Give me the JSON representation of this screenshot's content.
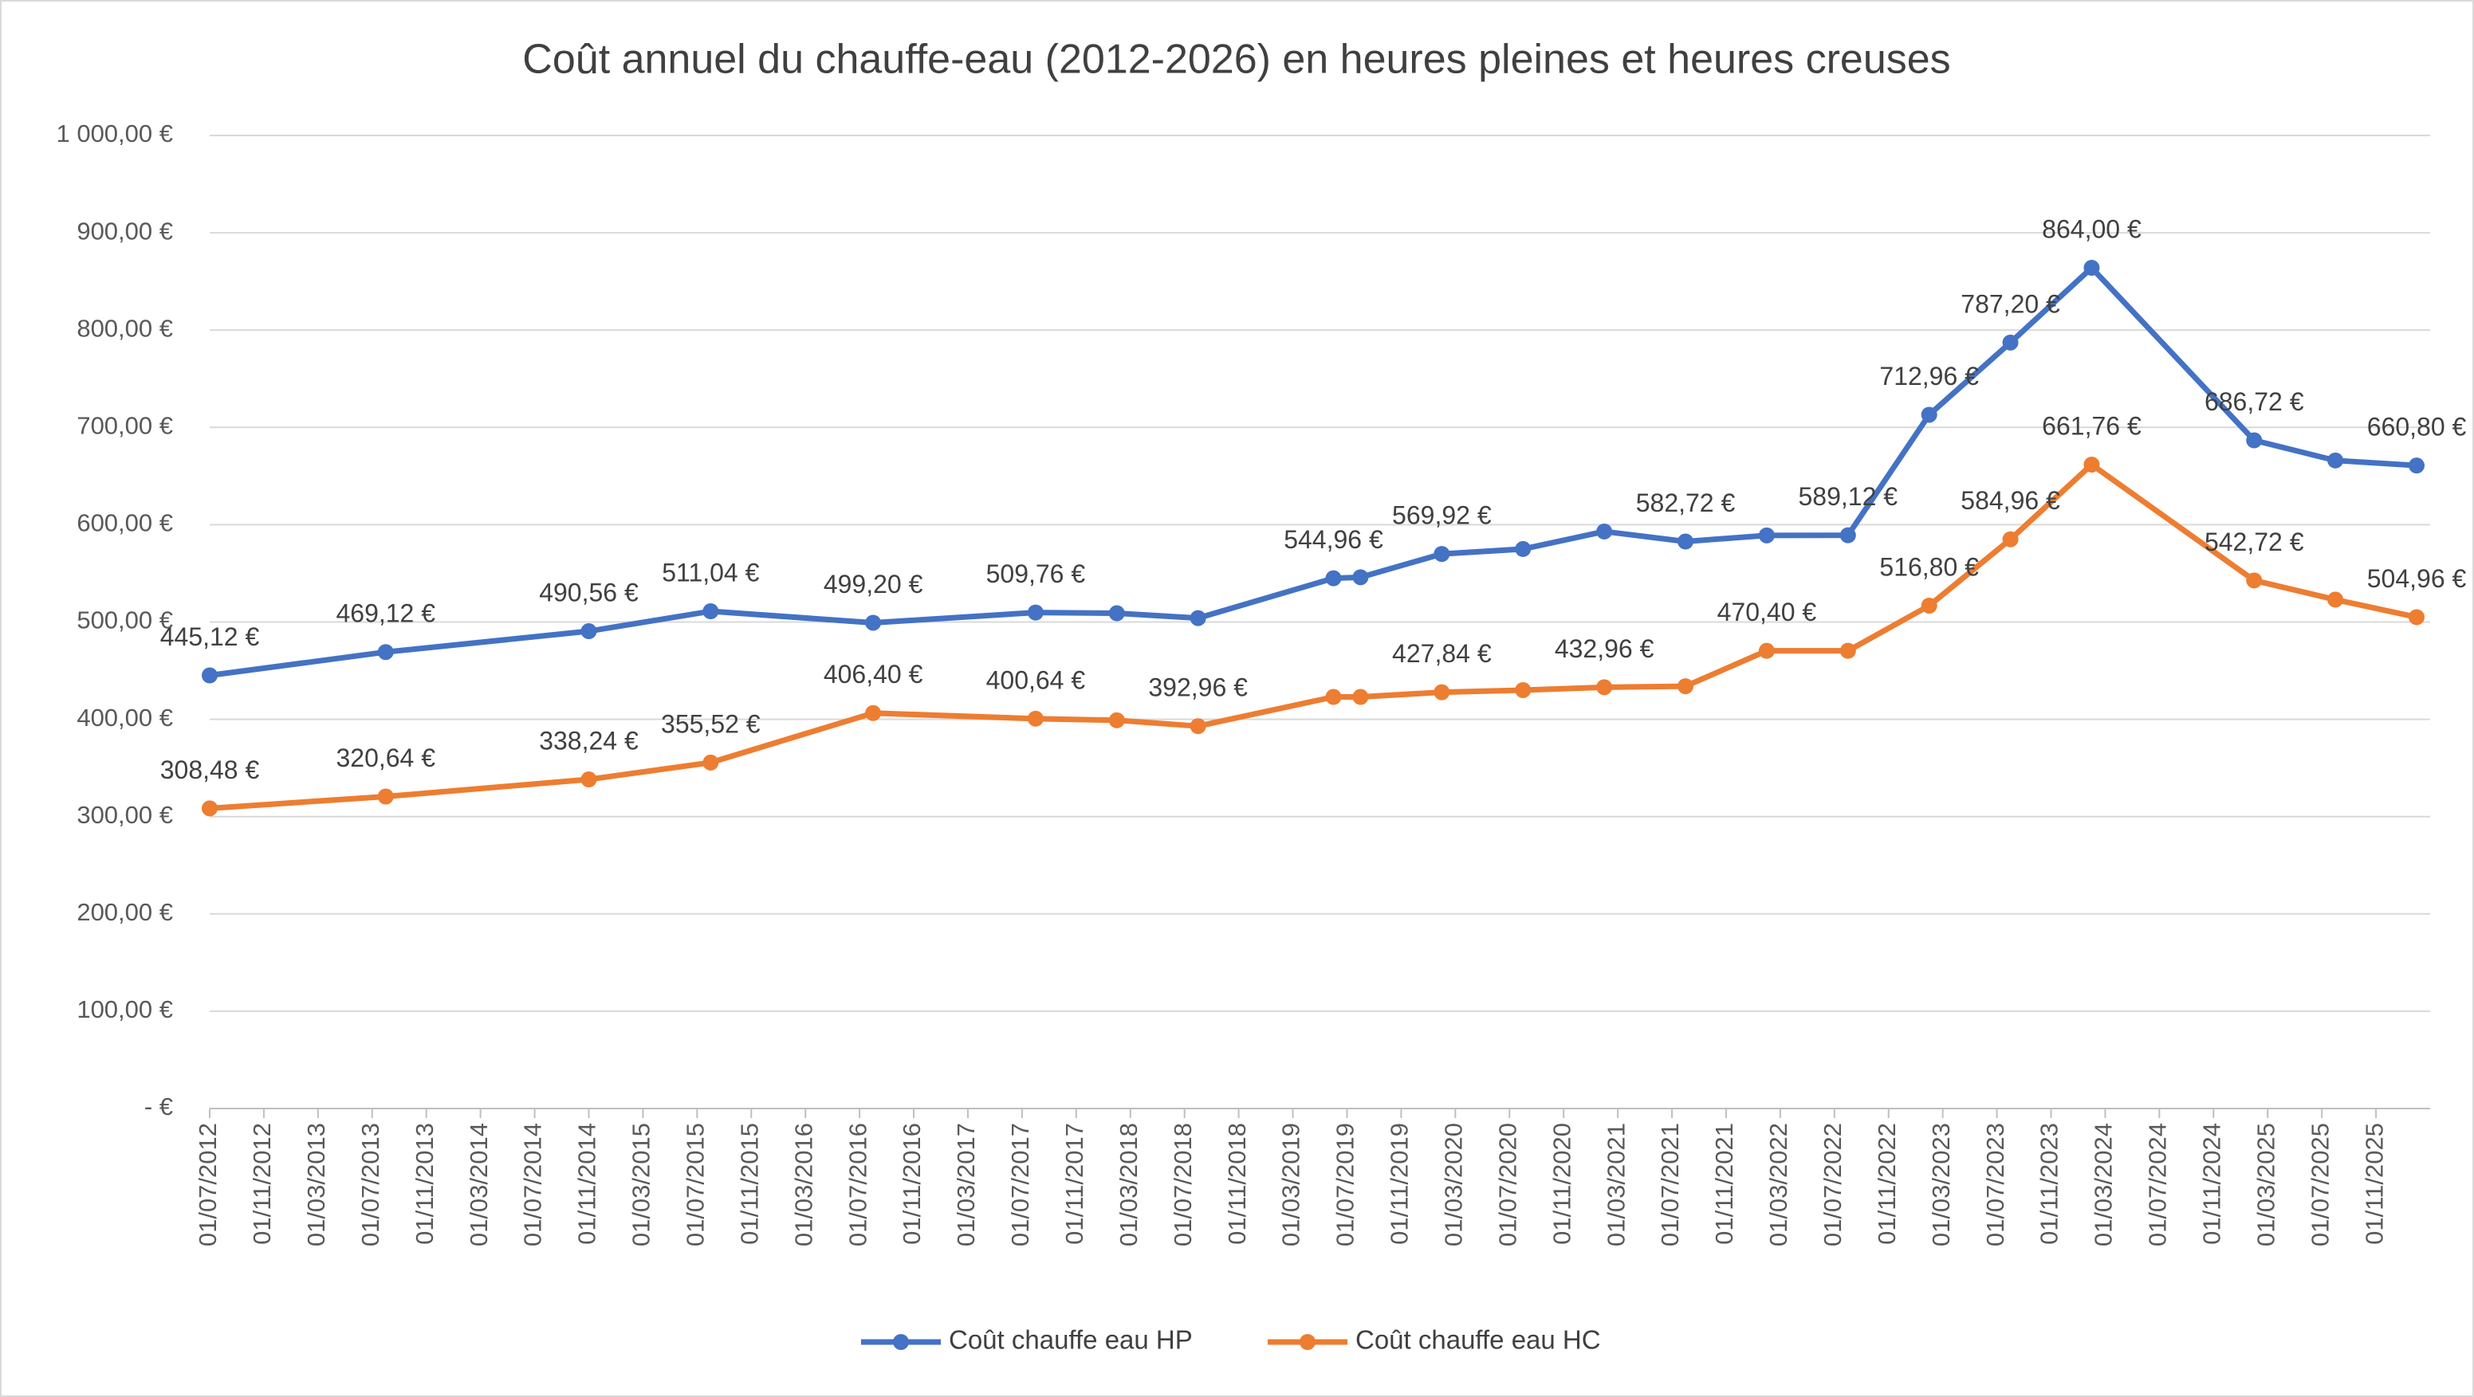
{
  "chart_data": {
    "type": "line",
    "title": "Coût annuel du chauffe-eau (2012-2026)  en heures pleines et heures creuses",
    "x": [
      "01/07/2012",
      "01/08/2013",
      "01/11/2014",
      "01/08/2015",
      "01/08/2016",
      "01/08/2017",
      "01/02/2018",
      "01/08/2018",
      "01/06/2019",
      "01/08/2019",
      "01/02/2020",
      "01/08/2020",
      "01/02/2021",
      "01/08/2021",
      "01/02/2022",
      "01/08/2022",
      "01/02/2023",
      "01/08/2023",
      "01/02/2024",
      "01/02/2025",
      "01/08/2025",
      "01/02/2026"
    ],
    "series": [
      {
        "name": "Coût chauffe eau HP",
        "color": "#4472c4",
        "values": [
          445.12,
          469.12,
          490.56,
          511.04,
          499.2,
          509.76,
          509,
          504,
          544.96,
          546,
          569.92,
          575,
          593,
          582.72,
          589,
          589.12,
          712.96,
          787.2,
          864.0,
          686.72,
          666,
          660.8
        ],
        "value_labels": [
          "445,12 €",
          "469,12 €",
          "490,56 €",
          "511,04 €",
          "499,20 €",
          "509,76 €",
          null,
          null,
          "544,96 €",
          null,
          "569,92 €",
          null,
          null,
          "582,72 €",
          null,
          "589,12 €",
          "712,96 €",
          "787,20 €",
          "864,00 €",
          "686,72 €",
          null,
          "660,80 €"
        ]
      },
      {
        "name": "Coût chauffe eau HC",
        "color": "#ed7d31",
        "values": [
          308.48,
          320.64,
          338.24,
          355.52,
          406.4,
          400.64,
          399,
          392.96,
          423,
          423,
          427.84,
          430,
          432.96,
          434,
          470.4,
          470.4,
          516.8,
          584.96,
          661.76,
          542.72,
          523,
          504.96
        ],
        "value_labels": [
          "308,48 €",
          "320,64 €",
          "338,24 €",
          "355,52 €",
          "406,40 €",
          "400,64 €",
          null,
          "392,96 €",
          null,
          null,
          "427,84 €",
          null,
          "432,96 €",
          null,
          "470,40 €",
          null,
          "516,80 €",
          "584,96 €",
          "661,76 €",
          "542,72 €",
          null,
          "504,96 €"
        ]
      }
    ],
    "xlim": [
      "01/07/2012",
      "01/03/2026"
    ],
    "xticks": [
      "01/07/2012",
      "01/11/2012",
      "01/03/2013",
      "01/07/2013",
      "01/11/2013",
      "01/03/2014",
      "01/07/2014",
      "01/11/2014",
      "01/03/2015",
      "01/07/2015",
      "01/11/2015",
      "01/03/2016",
      "01/07/2016",
      "01/11/2016",
      "01/03/2017",
      "01/07/2017",
      "01/11/2017",
      "01/03/2018",
      "01/07/2018",
      "01/11/2018",
      "01/03/2019",
      "01/07/2019",
      "01/11/2019",
      "01/03/2020",
      "01/07/2020",
      "01/11/2020",
      "01/03/2021",
      "01/07/2021",
      "01/11/2021",
      "01/03/2022",
      "01/07/2022",
      "01/11/2022",
      "01/03/2023",
      "01/07/2023",
      "01/11/2023",
      "01/03/2024",
      "01/07/2024",
      "01/11/2024",
      "01/03/2025",
      "01/07/2025",
      "01/11/2025"
    ],
    "ylim": [
      0,
      1000
    ],
    "yticks": [
      {
        "value": 0,
        "label": "-   €"
      },
      {
        "value": 100,
        "label": "100,00 €"
      },
      {
        "value": 200,
        "label": "200,00 €"
      },
      {
        "value": 300,
        "label": "300,00 €"
      },
      {
        "value": 400,
        "label": "400,00 €"
      },
      {
        "value": 500,
        "label": "500,00 €"
      },
      {
        "value": 600,
        "label": "600,00 €"
      },
      {
        "value": 700,
        "label": "700,00 €"
      },
      {
        "value": 800,
        "label": "800,00 €"
      },
      {
        "value": 900,
        "label": "900,00 €"
      },
      {
        "value": 1000,
        "label": "1 000,00 €"
      }
    ],
    "grid": true,
    "legend": "bottom"
  }
}
